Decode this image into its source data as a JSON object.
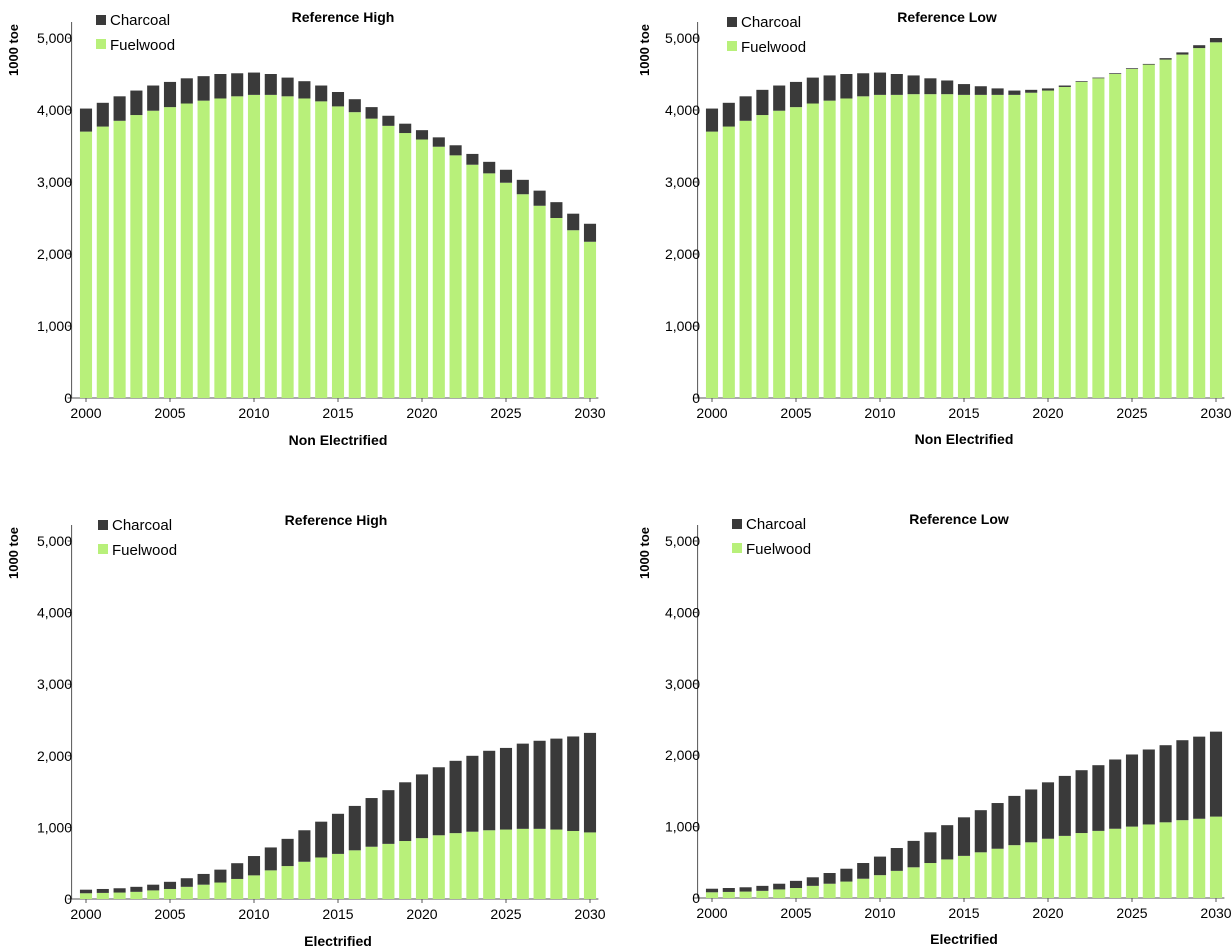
{
  "colors": {
    "charcoal": "#3a3a3a",
    "fuelwood": "#b8f07a",
    "axis": "#555555"
  },
  "chart_data": [
    {
      "type": "bar",
      "stacked": true,
      "title": "Reference High",
      "xlabel": "Non Electrified",
      "ylabel": "1000 toe",
      "ylim": [
        0,
        5000
      ],
      "yticks": [
        "0",
        "1,000",
        "2,000",
        "3,000",
        "4,000",
        "5,000"
      ],
      "x": [
        2000,
        2001,
        2002,
        2003,
        2004,
        2005,
        2006,
        2007,
        2008,
        2009,
        2010,
        2011,
        2012,
        2013,
        2014,
        2015,
        2016,
        2017,
        2018,
        2019,
        2020,
        2021,
        2022,
        2023,
        2024,
        2025,
        2026,
        2027,
        2028,
        2029,
        2030
      ],
      "xticks": [
        "2000",
        "2005",
        "2010",
        "2015",
        "2020",
        "2025",
        "2030"
      ],
      "legend": "top-left",
      "series": [
        {
          "name": "Charcoal",
          "values": [
            320,
            330,
            340,
            340,
            350,
            350,
            350,
            340,
            340,
            320,
            310,
            290,
            260,
            240,
            220,
            200,
            180,
            160,
            140,
            130,
            130,
            130,
            140,
            150,
            160,
            180,
            200,
            210,
            220,
            230,
            250
          ]
        },
        {
          "name": "Fuelwood",
          "values": [
            3700,
            3770,
            3850,
            3930,
            3990,
            4040,
            4090,
            4130,
            4160,
            4190,
            4210,
            4210,
            4190,
            4160,
            4120,
            4050,
            3970,
            3880,
            3780,
            3680,
            3590,
            3490,
            3370,
            3240,
            3120,
            2990,
            2830,
            2670,
            2500,
            2330,
            2170
          ]
        }
      ]
    },
    {
      "type": "bar",
      "stacked": true,
      "title": "Reference Low",
      "xlabel": "Non Electrified",
      "ylabel": "1000 toe",
      "ylim": [
        0,
        5000
      ],
      "yticks": [
        "0",
        "1,000",
        "2,000",
        "3,000",
        "4,000",
        "5,000"
      ],
      "x": [
        2000,
        2001,
        2002,
        2003,
        2004,
        2005,
        2006,
        2007,
        2008,
        2009,
        2010,
        2011,
        2012,
        2013,
        2014,
        2015,
        2016,
        2017,
        2018,
        2019,
        2020,
        2021,
        2022,
        2023,
        2024,
        2025,
        2026,
        2027,
        2028,
        2029,
        2030
      ],
      "xticks": [
        "2000",
        "2005",
        "2010",
        "2015",
        "2020",
        "2025",
        "2030"
      ],
      "legend": "top-left",
      "series": [
        {
          "name": "Charcoal",
          "values": [
            320,
            330,
            340,
            350,
            350,
            350,
            360,
            350,
            340,
            320,
            310,
            290,
            260,
            220,
            190,
            150,
            120,
            90,
            60,
            40,
            30,
            20,
            10,
            10,
            10,
            10,
            10,
            20,
            30,
            40,
            60
          ]
        },
        {
          "name": "Fuelwood",
          "values": [
            3700,
            3770,
            3850,
            3930,
            3990,
            4040,
            4090,
            4130,
            4160,
            4190,
            4210,
            4210,
            4220,
            4220,
            4220,
            4210,
            4210,
            4210,
            4210,
            4240,
            4270,
            4320,
            4390,
            4440,
            4500,
            4570,
            4630,
            4700,
            4770,
            4860,
            4940
          ]
        }
      ]
    },
    {
      "type": "bar",
      "stacked": true,
      "title": "Reference High",
      "xlabel": "Electrified",
      "ylabel": "1000 toe",
      "ylim": [
        0,
        5000
      ],
      "yticks": [
        "0",
        "1,000",
        "2,000",
        "3,000",
        "4,000",
        "5,000"
      ],
      "x": [
        2000,
        2001,
        2002,
        2003,
        2004,
        2005,
        2006,
        2007,
        2008,
        2009,
        2010,
        2011,
        2012,
        2013,
        2014,
        2015,
        2016,
        2017,
        2018,
        2019,
        2020,
        2021,
        2022,
        2023,
        2024,
        2025,
        2026,
        2027,
        2028,
        2029,
        2030
      ],
      "xticks": [
        "2000",
        "2005",
        "2010",
        "2015",
        "2020",
        "2025",
        "2030"
      ],
      "legend": "top-left",
      "series": [
        {
          "name": "Charcoal",
          "values": [
            50,
            55,
            60,
            70,
            80,
            100,
            120,
            150,
            180,
            220,
            270,
            320,
            380,
            440,
            500,
            560,
            620,
            680,
            750,
            820,
            890,
            950,
            1010,
            1060,
            1110,
            1140,
            1190,
            1230,
            1270,
            1320,
            1390
          ]
        },
        {
          "name": "Fuelwood",
          "values": [
            80,
            85,
            90,
            100,
            120,
            140,
            170,
            200,
            230,
            280,
            330,
            400,
            460,
            520,
            580,
            630,
            680,
            730,
            770,
            810,
            850,
            890,
            920,
            940,
            960,
            970,
            980,
            980,
            970,
            950,
            930
          ]
        }
      ]
    },
    {
      "type": "bar",
      "stacked": true,
      "title": "Reference Low",
      "xlabel": "Electrified",
      "ylabel": "1000 toe",
      "ylim": [
        0,
        5000
      ],
      "yticks": [
        "0",
        "1,000",
        "2,000",
        "3,000",
        "4,000",
        "5,000"
      ],
      "x": [
        2000,
        2001,
        2002,
        2003,
        2004,
        2005,
        2006,
        2007,
        2008,
        2009,
        2010,
        2011,
        2012,
        2013,
        2014,
        2015,
        2016,
        2017,
        2018,
        2019,
        2020,
        2021,
        2022,
        2023,
        2024,
        2025,
        2026,
        2027,
        2028,
        2029,
        2030
      ],
      "xticks": [
        "2000",
        "2005",
        "2010",
        "2015",
        "2020",
        "2025",
        "2030"
      ],
      "legend": "top-left",
      "series": [
        {
          "name": "Charcoal",
          "values": [
            50,
            55,
            60,
            70,
            80,
            100,
            120,
            150,
            180,
            220,
            260,
            320,
            370,
            430,
            480,
            540,
            590,
            640,
            690,
            740,
            790,
            840,
            880,
            920,
            970,
            1010,
            1050,
            1080,
            1120,
            1150,
            1190
          ]
        },
        {
          "name": "Fuelwood",
          "values": [
            80,
            85,
            90,
            100,
            120,
            140,
            170,
            200,
            230,
            270,
            320,
            380,
            430,
            490,
            540,
            590,
            640,
            690,
            740,
            780,
            830,
            870,
            910,
            940,
            970,
            1000,
            1030,
            1060,
            1090,
            1110,
            1140
          ]
        }
      ]
    }
  ]
}
